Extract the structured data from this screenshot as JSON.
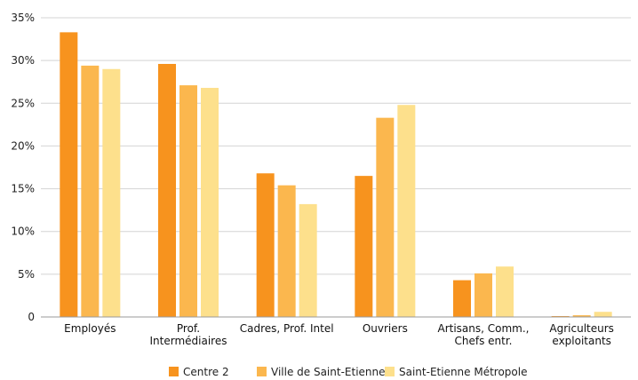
{
  "chart_data": {
    "type": "bar",
    "categories": [
      [
        "Employés"
      ],
      [
        "Prof.",
        "Intermédiaires"
      ],
      [
        "Cadres, Prof. Intel"
      ],
      [
        "Ouvriers"
      ],
      [
        "Artisans, Comm.,",
        "Chefs entr."
      ],
      [
        "Agriculteurs",
        "exploitants"
      ]
    ],
    "series": [
      {
        "name": "Centre 2",
        "color": "#F7931E",
        "values": [
          33.3,
          29.6,
          16.8,
          16.5,
          4.3,
          0.1
        ]
      },
      {
        "name": "Ville de Saint-Etienne",
        "color": "#FBB74E",
        "values": [
          29.4,
          27.1,
          15.4,
          23.3,
          5.1,
          0.2
        ]
      },
      {
        "name": "Saint-Etienne Métropole",
        "color": "#FDE08C",
        "values": [
          29.0,
          26.8,
          13.2,
          24.8,
          5.9,
          0.6
        ]
      }
    ],
    "ylim": [
      0,
      35
    ],
    "yticks": [
      "0",
      "5%",
      "10%",
      "15%",
      "20%",
      "25%",
      "30%",
      "35%"
    ],
    "grid": true,
    "legend": "bottom",
    "title": "",
    "xlabel": "",
    "ylabel": ""
  }
}
